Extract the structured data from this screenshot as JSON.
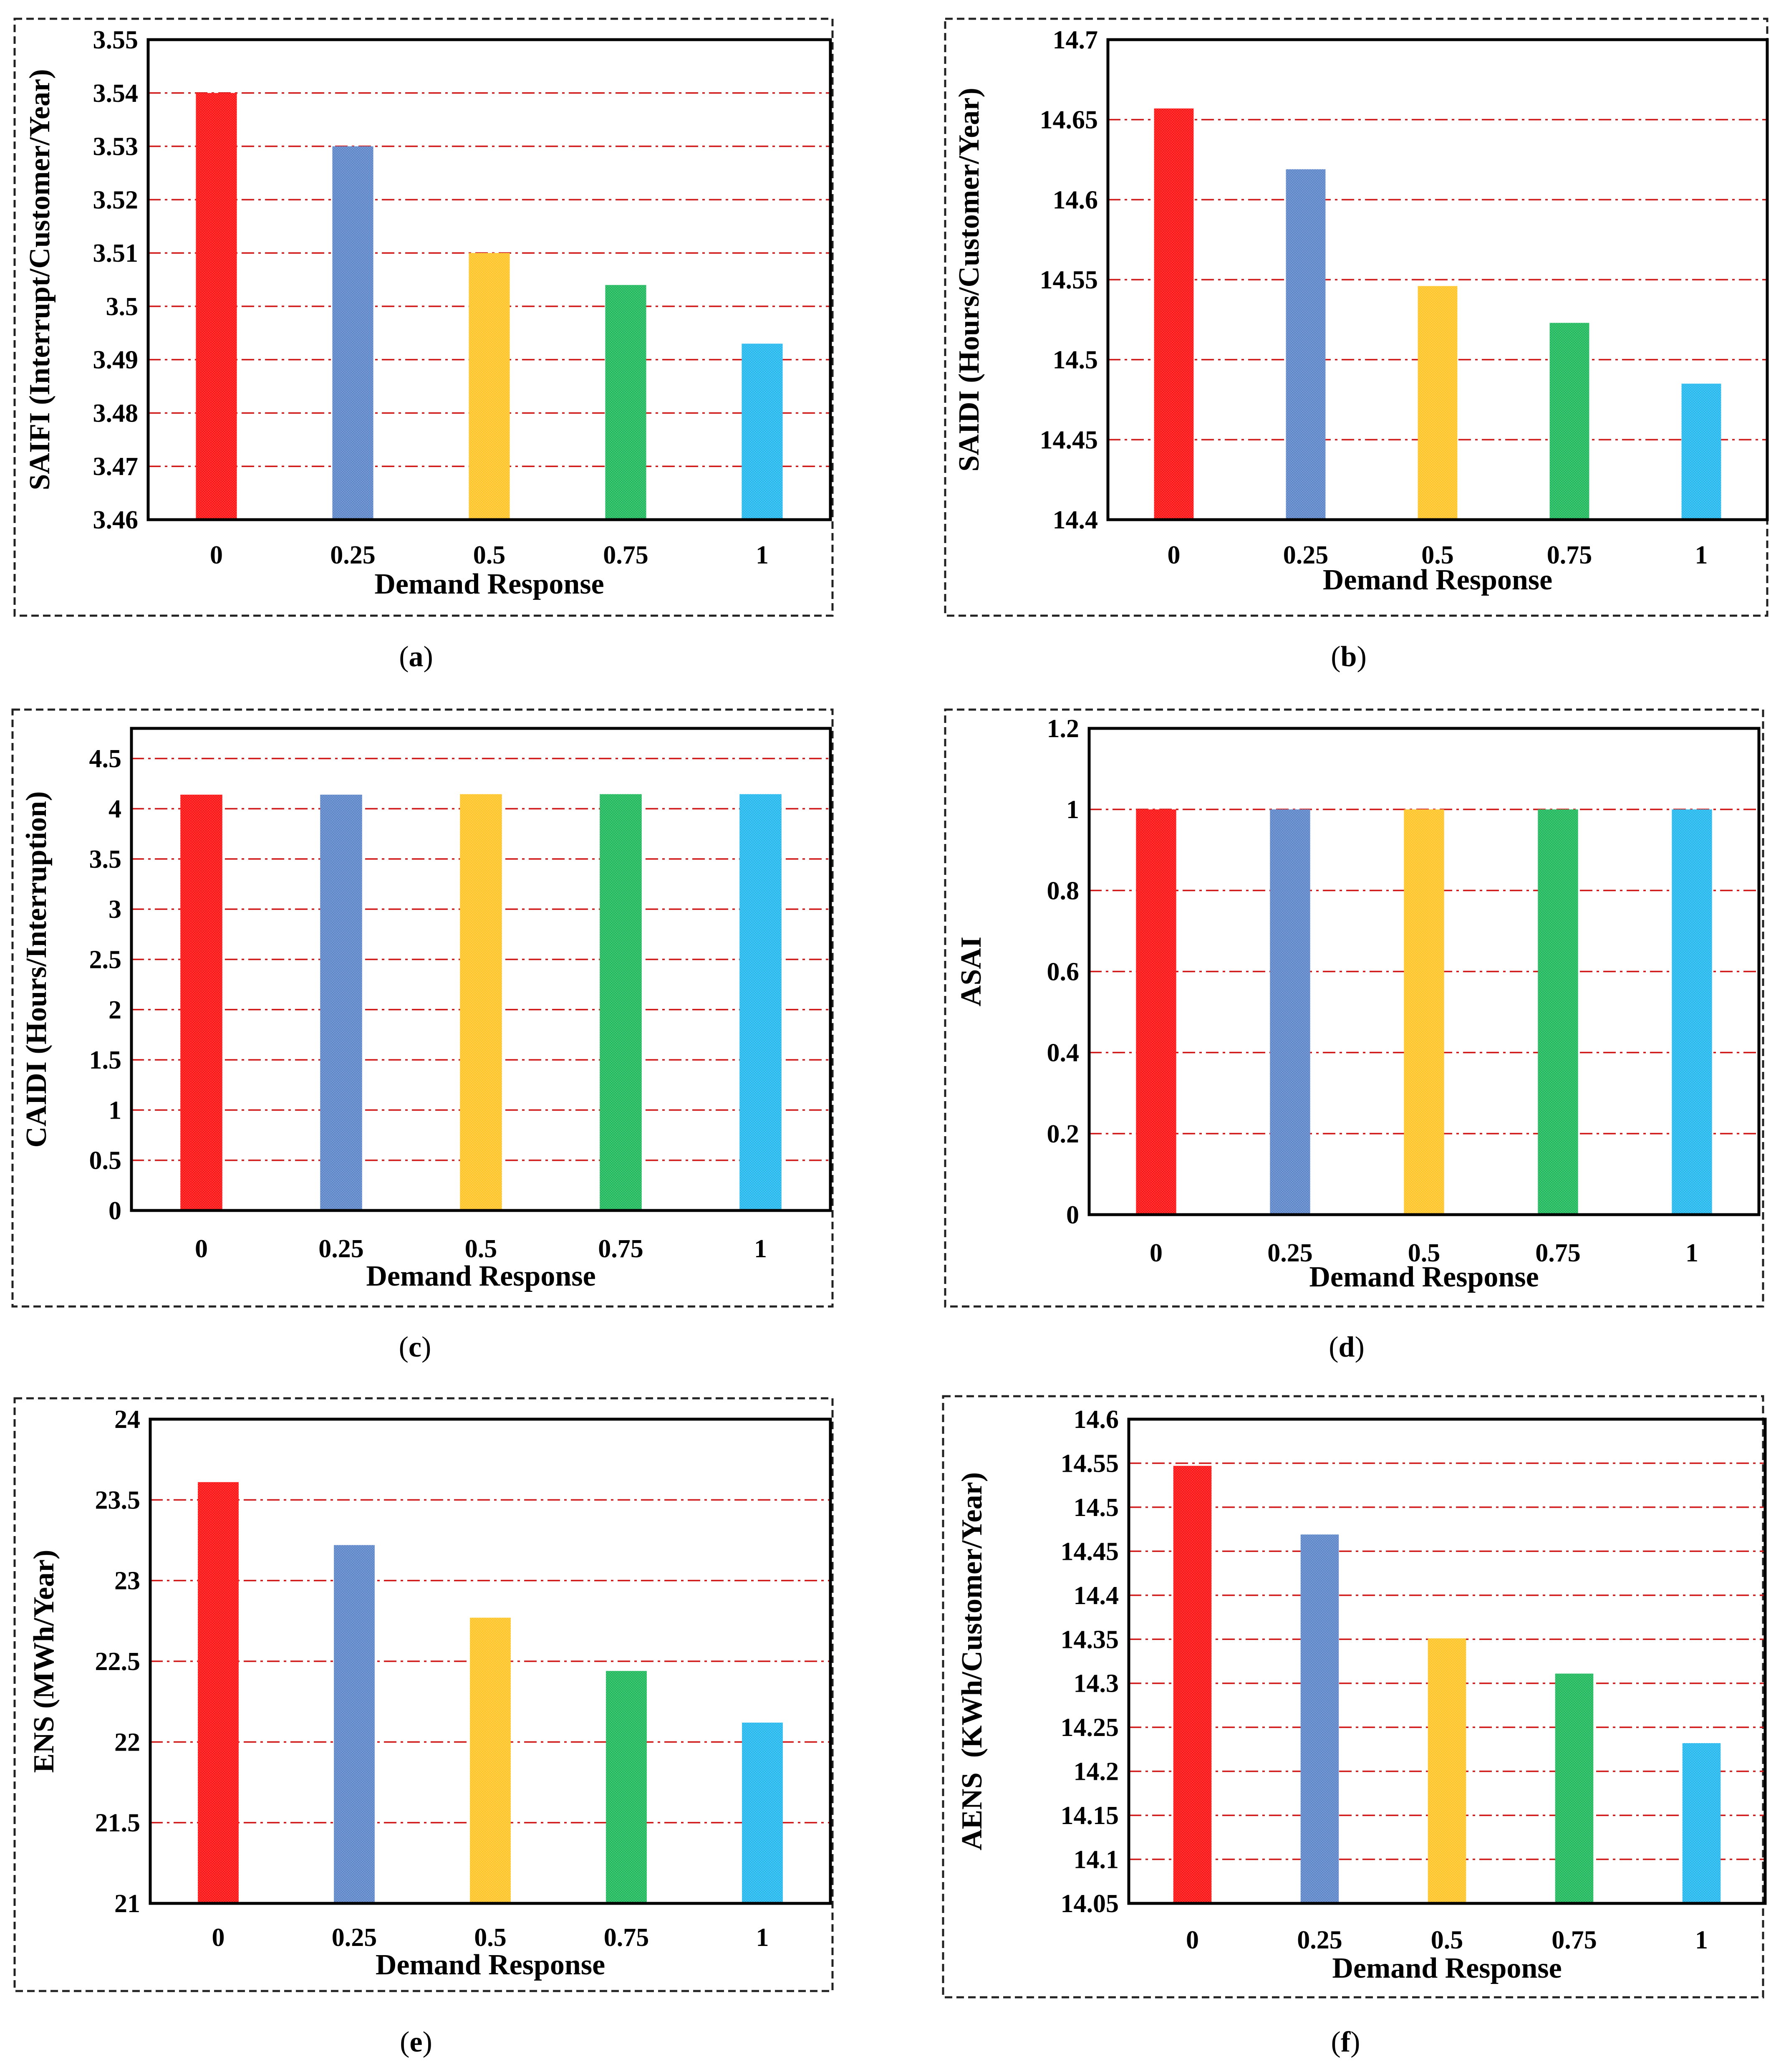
{
  "chart_data": [
    {
      "type": "bar",
      "panel": "a",
      "categories": [
        "0",
        "0.25",
        "0.5",
        "0.75",
        "1"
      ],
      "values": [
        3.54,
        3.53,
        3.51,
        3.504,
        3.493
      ],
      "colors": [
        "#ff1010",
        "#5b85c8",
        "#ffc425",
        "#1db85c",
        "#22b8ee"
      ],
      "xlabel": "Demand Response",
      "ylabel": "SAIFI (Interrupt/Customer/Year)",
      "ylim": [
        3.46,
        3.55
      ],
      "yticks": [
        "3.46",
        "3.47",
        "3.48",
        "3.49",
        "3.5",
        "3.51",
        "3.52",
        "3.53",
        "3.54",
        "3.55"
      ],
      "grid": true
    },
    {
      "type": "bar",
      "panel": "b",
      "categories": [
        "0",
        "0.25",
        "0.5",
        "0.75",
        "1"
      ],
      "values": [
        14.657,
        14.619,
        14.546,
        14.523,
        14.485
      ],
      "colors": [
        "#ff1010",
        "#5b85c8",
        "#ffc425",
        "#1db85c",
        "#22b8ee"
      ],
      "xlabel": "Demand Response",
      "ylabel": "SAIDI (Hours/Customer/Year)",
      "ylim": [
        14.4,
        14.7
      ],
      "yticks": [
        "14.4",
        "14.45",
        "14.5",
        "14.55",
        "14.6",
        "14.65",
        "14.7"
      ],
      "grid": true
    },
    {
      "type": "bar",
      "panel": "c",
      "categories": [
        "0",
        "0.25",
        "0.5",
        "0.75",
        "1"
      ],
      "values": [
        4.14,
        4.14,
        4.145,
        4.145,
        4.145
      ],
      "colors": [
        "#ff1010",
        "#5b85c8",
        "#ffc425",
        "#1db85c",
        "#22b8ee"
      ],
      "xlabel": "Demand Response",
      "ylabel": "CAIDI (Hours/Interruption)",
      "ylim": [
        0,
        4.8
      ],
      "yticks": [
        "0",
        "0.5",
        "1",
        "1.5",
        "2",
        "2.5",
        "3",
        "3.5",
        "4",
        "4.5"
      ],
      "grid": true
    },
    {
      "type": "bar",
      "panel": "d",
      "categories": [
        "0",
        "0.25",
        "0.5",
        "0.75",
        "1"
      ],
      "values": [
        1,
        1,
        1,
        1,
        1
      ],
      "colors": [
        "#ff1010",
        "#5b85c8",
        "#ffc425",
        "#1db85c",
        "#22b8ee"
      ],
      "xlabel": "Demand Response",
      "ylabel": "ASAI",
      "ylim": [
        0,
        1.2
      ],
      "yticks": [
        "0",
        "0.2",
        "0.4",
        "0.6",
        "0.8",
        "1",
        "1.2"
      ],
      "grid": true
    },
    {
      "type": "bar",
      "panel": "e",
      "categories": [
        "0",
        "0.25",
        "0.5",
        "0.75",
        "1"
      ],
      "values": [
        23.61,
        23.22,
        22.77,
        22.44,
        22.12
      ],
      "colors": [
        "#ff1010",
        "#5b85c8",
        "#ffc425",
        "#1db85c",
        "#22b8ee"
      ],
      "xlabel": "Demand Response",
      "ylabel": "ENS (MWh/Year)",
      "ylim": [
        21,
        24
      ],
      "yticks": [
        "21",
        "21.5",
        "22",
        "22.5",
        "23",
        "23.5",
        "24"
      ],
      "grid": true
    },
    {
      "type": "bar",
      "panel": "f",
      "categories": [
        "0",
        "0.25",
        "0.5",
        "0.75",
        "1"
      ],
      "values": [
        14.547,
        14.469,
        14.351,
        14.311,
        14.232
      ],
      "colors": [
        "#ff1010",
        "#5b85c8",
        "#ffc425",
        "#1db85c",
        "#22b8ee"
      ],
      "xlabel": "Demand Response",
      "ylabel": "AENS  (KWh/Customer/Year)",
      "ylim": [
        14.05,
        14.6
      ],
      "yticks": [
        "14.05",
        "14.1",
        "14.15",
        "14.2",
        "14.25",
        "14.3",
        "14.35",
        "14.4",
        "14.45",
        "14.5",
        "14.55",
        "14.6"
      ],
      "grid": true
    }
  ],
  "captions": [
    {
      "open": "(",
      "letter": "a",
      "close": ")"
    },
    {
      "open": "(",
      "letter": "b",
      "close": ")"
    },
    {
      "open": "(",
      "letter": "c",
      "close": ")"
    },
    {
      "open": "(",
      "letter": "d",
      "close": ")"
    },
    {
      "open": "(",
      "letter": "e",
      "close": ")"
    },
    {
      "open": "(",
      "letter": "f",
      "close": ")"
    }
  ]
}
